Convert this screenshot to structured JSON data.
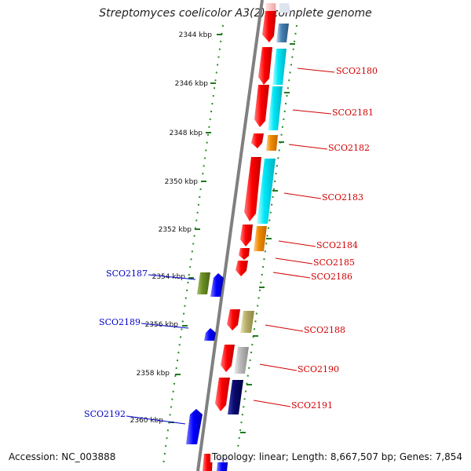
{
  "title": "Streptomyces coelicolor A3(2), complete genome",
  "footer": {
    "accession": "Accession: NC_003888",
    "summary": "Topology: linear; Length: 8,667,507 bp; Genes: 7,854"
  },
  "ruler": {
    "ticks": [
      "2344 kbp",
      "2346 kbp",
      "2348 kbp",
      "2350 kbp",
      "2352 kbp",
      "2354 kbp",
      "2356 kbp",
      "2358 kbp",
      "2360 kbp"
    ]
  },
  "genes_right": [
    "SCO2180",
    "SCO2181",
    "SCO2182",
    "SCO2183",
    "SCO2184",
    "SCO2185",
    "SCO2186",
    "SCO2188",
    "SCO2190",
    "SCO2191"
  ],
  "genes_left": [
    "SCO2187",
    "SCO2189",
    "SCO2192"
  ],
  "colors": {
    "backbone": "#808080",
    "forward_gene": "#ff0000",
    "reverse_gene": "#0000ff",
    "label_right": "#d00000",
    "label_left": "#0000c8",
    "ruler_dots": "#2a8a2a",
    "cyan_block": "#00e0f0",
    "orange_block": "#f08a00",
    "olive_block": "#b9b06a",
    "green_block": "#6b8e23",
    "grey_block": "#b4b4b4",
    "navy_block": "#0a0a70",
    "steel_block": "#4682b4"
  }
}
